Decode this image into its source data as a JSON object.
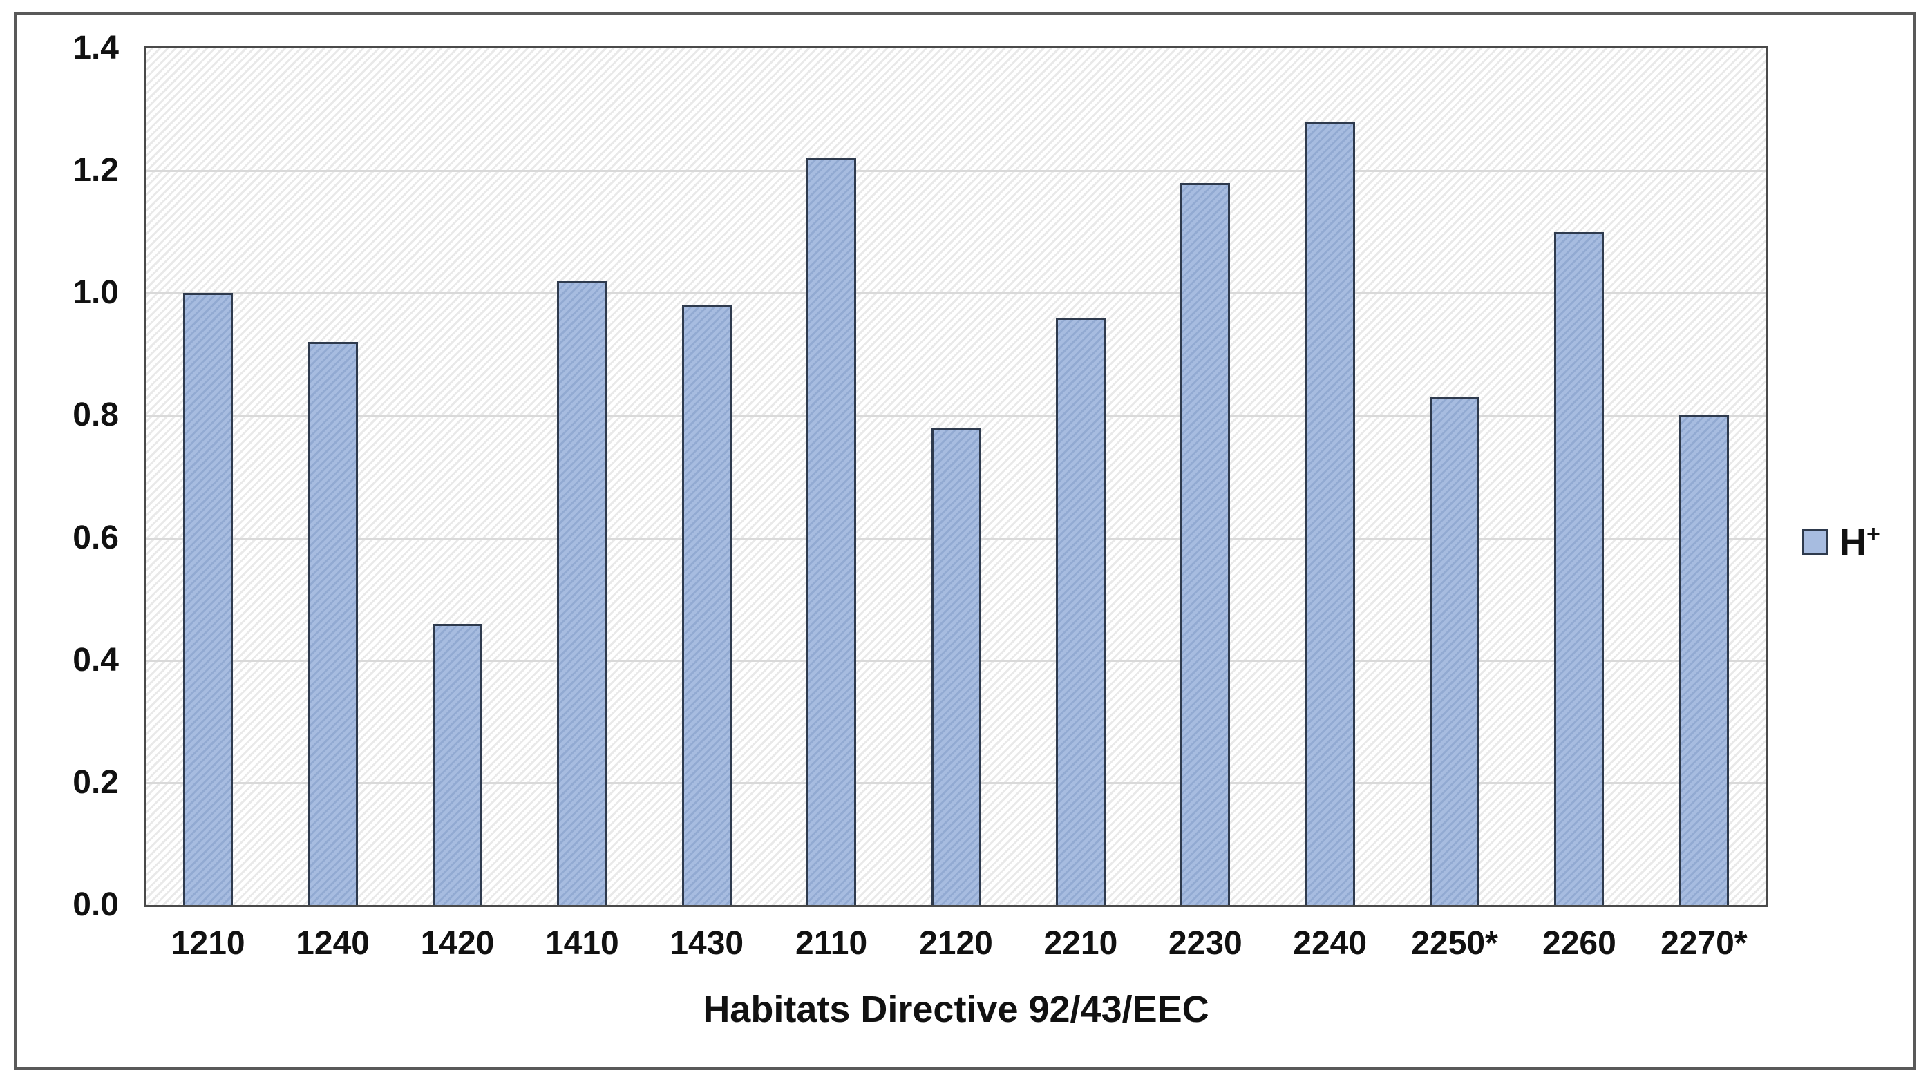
{
  "chart_data": {
    "type": "bar",
    "title": "",
    "xlabel": "Habitats Directive 92/43/EEC",
    "ylabel": "",
    "categories": [
      "1210",
      "1240",
      "1420",
      "1410",
      "1430",
      "2110",
      "2120",
      "2210",
      "2230",
      "2240",
      "2250*",
      "2260",
      "2270*"
    ],
    "series": [
      {
        "name": "H+",
        "values": [
          1.0,
          0.92,
          0.46,
          1.02,
          0.98,
          1.22,
          0.78,
          0.96,
          1.18,
          1.28,
          0.83,
          1.1,
          0.8
        ]
      }
    ],
    "ylim": [
      0,
      1.4
    ],
    "ytick_step": 0.2,
    "ytick_labels": [
      "0.0",
      "0.2",
      "0.4",
      "0.6",
      "0.8",
      "1.0",
      "1.2",
      "1.4"
    ],
    "grid": "horizontal",
    "plot_background": "diagonal-hatch",
    "legend_position": "right-middle",
    "legend_label": "H",
    "legend_superscript": "+"
  },
  "colors": {
    "background": "#ffffff",
    "text": "#111111",
    "outer-border": "#595959",
    "plot-border": "#4a4a4a",
    "gridline": "#d9d9d9",
    "hatch-line": "#e9e9e9",
    "bar-fill": "#a7bce0",
    "bar-hatch": "#92aad2",
    "bar-border": "#2e3a4d"
  }
}
